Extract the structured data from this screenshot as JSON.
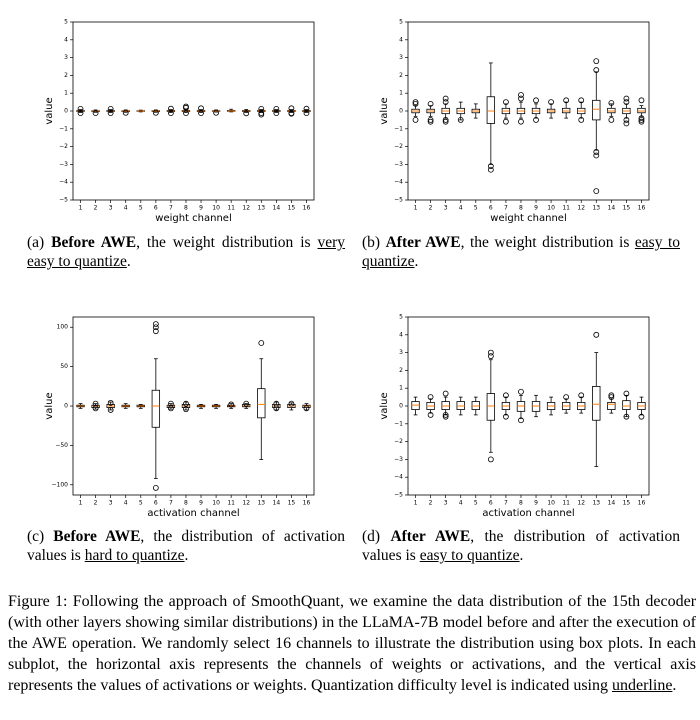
{
  "chart_data": [
    {
      "type": "box",
      "xlabel": "weight channel",
      "ylabel": "value",
      "color": "#000000",
      "median_color": "#ff7f0e",
      "categories": [
        "1",
        "2",
        "3",
        "4",
        "5",
        "6",
        "7",
        "8",
        "9",
        "10",
        "11",
        "12",
        "13",
        "14",
        "15",
        "16"
      ],
      "ylim": [
        -5,
        5
      ],
      "yticks": [
        {
          "value": -5,
          "label": "−5"
        },
        {
          "value": -4,
          "label": "−4"
        },
        {
          "value": -3,
          "label": "−3"
        },
        {
          "value": -2,
          "label": "−2"
        },
        {
          "value": -1,
          "label": "−1"
        },
        0,
        1,
        2,
        3,
        4,
        5
      ],
      "boxes": [
        {
          "q1": -0.03,
          "median": 0,
          "q3": 0.03,
          "low": -0.08,
          "high": 0.08,
          "fliers": [
            0.12,
            -0.12
          ]
        },
        {
          "q1": -0.03,
          "median": 0,
          "q3": 0.02,
          "low": -0.07,
          "high": 0.06,
          "fliers": [
            -0.12
          ]
        },
        {
          "q1": -0.03,
          "median": 0,
          "q3": 0.03,
          "low": -0.08,
          "high": 0.08,
          "fliers": [
            0.12,
            -0.12
          ]
        },
        {
          "q1": -0.03,
          "median": 0,
          "q3": 0.02,
          "low": -0.07,
          "high": 0.06,
          "fliers": [
            -0.1
          ]
        },
        {
          "q1": -0.02,
          "median": 0,
          "q3": 0.02,
          "low": -0.05,
          "high": 0.05,
          "fliers": []
        },
        {
          "q1": -0.03,
          "median": 0,
          "q3": 0.02,
          "low": -0.07,
          "high": 0.06,
          "fliers": [
            -0.1
          ]
        },
        {
          "q1": -0.03,
          "median": 0,
          "q3": 0.03,
          "low": -0.08,
          "high": 0.08,
          "fliers": [
            0.13,
            -0.12
          ]
        },
        {
          "q1": -0.03,
          "median": 0,
          "q3": 0.03,
          "low": -0.08,
          "high": 0.08,
          "fliers": [
            0.18,
            0.25,
            -0.12
          ]
        },
        {
          "q1": -0.03,
          "median": 0,
          "q3": 0.03,
          "low": -0.08,
          "high": 0.08,
          "fliers": [
            0.15,
            -0.12
          ]
        },
        {
          "q1": -0.02,
          "median": 0,
          "q3": 0.02,
          "low": -0.06,
          "high": 0.06,
          "fliers": [
            -0.1
          ]
        },
        {
          "q1": -0.02,
          "median": 0,
          "q3": 0.03,
          "low": -0.05,
          "high": 0.1,
          "fliers": []
        },
        {
          "q1": -0.03,
          "median": 0,
          "q3": 0.03,
          "low": -0.08,
          "high": 0.08,
          "fliers": [
            -0.13
          ]
        },
        {
          "q1": -0.03,
          "median": 0,
          "q3": 0.03,
          "low": -0.08,
          "high": 0.08,
          "fliers": [
            0.12,
            -0.12,
            -0.2
          ]
        },
        {
          "q1": -0.03,
          "median": 0,
          "q3": 0.03,
          "low": -0.08,
          "high": 0.08,
          "fliers": [
            0.12,
            -0.12
          ]
        },
        {
          "q1": -0.03,
          "median": 0,
          "q3": 0.03,
          "low": -0.08,
          "high": 0.08,
          "fliers": [
            0.15,
            -0.12,
            -0.15
          ]
        },
        {
          "q1": -0.03,
          "median": 0,
          "q3": 0.03,
          "low": -0.08,
          "high": 0.08,
          "fliers": [
            0.13,
            -0.12
          ]
        }
      ]
    },
    {
      "type": "box",
      "xlabel": "weight channel",
      "ylabel": "value",
      "color": "#000000",
      "median_color": "#ff7f0e",
      "categories": [
        "1",
        "2",
        "3",
        "4",
        "5",
        "6",
        "7",
        "8",
        "9",
        "10",
        "11",
        "12",
        "13",
        "14",
        "15",
        "16"
      ],
      "ylim": [
        -5,
        5
      ],
      "yticks": [
        {
          "value": -5,
          "label": "−5"
        },
        {
          "value": -4,
          "label": "−4"
        },
        {
          "value": -3,
          "label": "−3"
        },
        {
          "value": -2,
          "label": "−2"
        },
        {
          "value": -1,
          "label": "−1"
        },
        0,
        1,
        2,
        3,
        4,
        5
      ],
      "boxes": [
        {
          "q1": -0.1,
          "median": 0,
          "q3": 0.1,
          "low": -0.3,
          "high": 0.3,
          "fliers": [
            0.4,
            0.5,
            -0.5
          ]
        },
        {
          "q1": -0.1,
          "median": 0,
          "q3": 0.1,
          "low": -0.3,
          "high": 0.3,
          "fliers": [
            0.4,
            -0.5,
            -0.6
          ]
        },
        {
          "q1": -0.15,
          "median": 0,
          "q3": 0.15,
          "low": -0.4,
          "high": 0.4,
          "fliers": [
            0.5,
            0.7,
            -0.5,
            -0.6
          ]
        },
        {
          "q1": -0.15,
          "median": 0,
          "q3": 0.15,
          "low": -0.5,
          "high": 0.5,
          "fliers": [
            -0.5
          ]
        },
        {
          "q1": -0.1,
          "median": 0,
          "q3": 0.1,
          "low": -0.4,
          "high": 0.4,
          "fliers": []
        },
        {
          "q1": -0.7,
          "median": 0,
          "q3": 0.8,
          "low": -3,
          "high": 2.7,
          "fliers": [
            -3.1,
            -3.3
          ]
        },
        {
          "q1": -0.15,
          "median": 0,
          "q3": 0.15,
          "low": -0.4,
          "high": 0.4,
          "fliers": [
            0.5,
            -0.6
          ]
        },
        {
          "q1": -0.15,
          "median": 0,
          "q3": 0.15,
          "low": -0.4,
          "high": 0.5,
          "fliers": [
            0.7,
            0.9,
            -0.6
          ]
        },
        {
          "q1": -0.15,
          "median": 0,
          "q3": 0.15,
          "low": -0.4,
          "high": 0.4,
          "fliers": [
            0.6,
            -0.5
          ]
        },
        {
          "q1": -0.1,
          "median": 0,
          "q3": 0.1,
          "low": -0.4,
          "high": 0.4,
          "fliers": [
            0.5
          ]
        },
        {
          "q1": -0.1,
          "median": 0,
          "q3": 0.15,
          "low": -0.4,
          "high": 0.5,
          "fliers": [
            0.6
          ]
        },
        {
          "q1": -0.15,
          "median": 0,
          "q3": 0.15,
          "low": -0.4,
          "high": 0.5,
          "fliers": [
            0.6,
            -0.5
          ]
        },
        {
          "q1": -0.5,
          "median": 0.1,
          "q3": 0.6,
          "low": -2.2,
          "high": 2.2,
          "fliers": [
            2.3,
            2.8,
            -2.3,
            -2.5,
            -4.5
          ]
        },
        {
          "q1": -0.1,
          "median": 0,
          "q3": 0.15,
          "low": -0.3,
          "high": 0.4,
          "fliers": [
            0.45,
            -0.5
          ]
        },
        {
          "q1": -0.15,
          "median": 0,
          "q3": 0.15,
          "low": -0.4,
          "high": 0.4,
          "fliers": [
            0.5,
            0.7,
            -0.5,
            -0.7
          ]
        },
        {
          "q1": -0.1,
          "median": 0,
          "q3": 0.15,
          "low": -0.3,
          "high": 0.3,
          "fliers": [
            0.6,
            -0.4,
            -0.5,
            -0.6
          ]
        }
      ]
    },
    {
      "type": "box",
      "xlabel": "activation channel",
      "ylabel": "value",
      "color": "#000000",
      "median_color": "#ff7f0e",
      "categories": [
        "1",
        "2",
        "3",
        "4",
        "5",
        "6",
        "7",
        "8",
        "9",
        "10",
        "11",
        "12",
        "13",
        "14",
        "15",
        "16"
      ],
      "ylim": [
        -113,
        113
      ],
      "yticks": [
        {
          "value": -100,
          "label": "−100"
        },
        {
          "value": -50,
          "label": "−50"
        },
        0,
        50,
        100
      ],
      "boxes": [
        {
          "q1": -1,
          "median": 0,
          "q3": 1,
          "low": -3,
          "high": 3,
          "fliers": []
        },
        {
          "q1": -2,
          "median": 0,
          "q3": 1,
          "low": -4,
          "high": 3,
          "fliers": [
            3,
            -3
          ]
        },
        {
          "q1": -2,
          "median": 0,
          "q3": 2,
          "low": -5,
          "high": 5,
          "fliers": [
            4,
            -5
          ]
        },
        {
          "q1": -1,
          "median": 0,
          "q3": 1,
          "low": -3,
          "high": 3,
          "fliers": []
        },
        {
          "q1": -1,
          "median": 0,
          "q3": 1,
          "low": -3,
          "high": 2,
          "fliers": []
        },
        {
          "q1": -27,
          "median": 0,
          "q3": 20,
          "low": -92,
          "high": 60,
          "fliers": [
            95,
            100,
            104,
            -104
          ]
        },
        {
          "q1": -2,
          "median": 0,
          "q3": 1,
          "low": -4,
          "high": 3,
          "fliers": [
            3,
            -3
          ]
        },
        {
          "q1": -2,
          "median": 0,
          "q3": 2,
          "low": -5,
          "high": 5,
          "fliers": [
            3,
            -4
          ]
        },
        {
          "q1": -1,
          "median": 0,
          "q3": 1,
          "low": -3,
          "high": 2,
          "fliers": []
        },
        {
          "q1": -1,
          "median": 0,
          "q3": 1,
          "low": -3,
          "high": 2,
          "fliers": []
        },
        {
          "q1": -1,
          "median": 0,
          "q3": 1,
          "low": -3,
          "high": 3,
          "fliers": [
            2
          ]
        },
        {
          "q1": -1,
          "median": 0,
          "q3": 2,
          "low": -3,
          "high": 3,
          "fliers": [
            3
          ]
        },
        {
          "q1": -15,
          "median": 2,
          "q3": 22,
          "low": -68,
          "high": 60,
          "fliers": [
            80
          ]
        },
        {
          "q1": -2,
          "median": 0,
          "q3": 2,
          "low": -5,
          "high": 5,
          "fliers": [
            3,
            -3
          ]
        },
        {
          "q1": -2,
          "median": 0,
          "q3": 2,
          "low": -5,
          "high": 4,
          "fliers": [
            3
          ]
        },
        {
          "q1": -2,
          "median": 0,
          "q3": 1,
          "low": -5,
          "high": 3,
          "fliers": [
            -3
          ]
        }
      ]
    },
    {
      "type": "box",
      "xlabel": "activation channel",
      "ylabel": "value",
      "color": "#000000",
      "median_color": "#ff7f0e",
      "categories": [
        "1",
        "2",
        "3",
        "4",
        "5",
        "6",
        "7",
        "8",
        "9",
        "10",
        "11",
        "12",
        "13",
        "14",
        "15",
        "16"
      ],
      "ylim": [
        -5,
        5
      ],
      "yticks": [
        {
          "value": -5,
          "label": "−5"
        },
        {
          "value": -4,
          "label": "−4"
        },
        {
          "value": -3,
          "label": "−3"
        },
        {
          "value": -2,
          "label": "−2"
        },
        {
          "value": -1,
          "label": "−1"
        },
        0,
        1,
        2,
        3,
        4,
        5
      ],
      "boxes": [
        {
          "q1": -0.2,
          "median": 0.05,
          "q3": 0.25,
          "low": -0.5,
          "high": 0.5,
          "fliers": []
        },
        {
          "q1": -0.2,
          "median": 0,
          "q3": 0.2,
          "low": -0.4,
          "high": 0.4,
          "fliers": [
            0.5,
            -0.5
          ]
        },
        {
          "q1": -0.2,
          "median": 0,
          "q3": 0.25,
          "low": -0.5,
          "high": 0.5,
          "fliers": [
            0.7,
            -0.5,
            -0.6
          ]
        },
        {
          "q1": -0.2,
          "median": 0,
          "q3": 0.25,
          "low": -0.5,
          "high": 0.5,
          "fliers": []
        },
        {
          "q1": -0.2,
          "median": 0,
          "q3": 0.25,
          "low": -0.5,
          "high": 0.5,
          "fliers": []
        },
        {
          "q1": -0.8,
          "median": 0,
          "q3": 0.7,
          "low": -2.6,
          "high": 2.6,
          "fliers": [
            2.8,
            3,
            -3
          ]
        },
        {
          "q1": -0.2,
          "median": 0,
          "q3": 0.2,
          "low": -0.5,
          "high": 0.5,
          "fliers": [
            0.6,
            -0.6
          ]
        },
        {
          "q1": -0.3,
          "median": 0,
          "q3": 0.25,
          "low": -0.7,
          "high": 0.6,
          "fliers": [
            0.8,
            -0.8
          ]
        },
        {
          "q1": -0.3,
          "median": 0,
          "q3": 0.25,
          "low": -0.6,
          "high": 0.6,
          "fliers": []
        },
        {
          "q1": -0.2,
          "median": 0,
          "q3": 0.2,
          "low": -0.5,
          "high": 0.5,
          "fliers": []
        },
        {
          "q1": -0.2,
          "median": 0,
          "q3": 0.2,
          "low": -0.4,
          "high": 0.4,
          "fliers": [
            0.5
          ]
        },
        {
          "q1": -0.2,
          "median": 0,
          "q3": 0.2,
          "low": -0.4,
          "high": 0.5,
          "fliers": [
            0.6
          ]
        },
        {
          "q1": -0.8,
          "median": 0.1,
          "q3": 1.1,
          "low": -3.4,
          "high": 3,
          "fliers": [
            4
          ]
        },
        {
          "q1": -0.2,
          "median": 0.1,
          "q3": 0.2,
          "low": -0.4,
          "high": 0.4,
          "fliers": [
            0.5,
            0.6
          ]
        },
        {
          "q1": -0.2,
          "median": 0,
          "q3": 0.3,
          "low": -0.6,
          "high": 0.6,
          "fliers": [
            0.7,
            -0.6
          ]
        },
        {
          "q1": -0.2,
          "median": 0,
          "q3": 0.2,
          "low": -0.5,
          "high": 0.5,
          "fliers": [
            -0.6
          ]
        }
      ]
    }
  ],
  "captions": [
    {
      "label": "(a)",
      "bold": "Before AWE",
      "text": ", the weight distribution is",
      "underlined": "very easy to quantize",
      "end": "."
    },
    {
      "label": "(b)",
      "bold": "After AWE",
      "text": ", the weight distribution is",
      "underlined": "easy to quantize",
      "end": "."
    },
    {
      "label": "(c)",
      "bold": "Before AWE",
      "text": ", the distribution of activation values is",
      "underlined": "hard to quantize",
      "end": "."
    },
    {
      "label": "(d)",
      "bold": "After AWE",
      "text": ", the distribution of activation values is",
      "underlined": "easy to quantize",
      "end": "."
    }
  ],
  "figure_caption": {
    "label": "Figure 1:",
    "text": "Following the approach of SmoothQuant, we examine the data distribution of the 15th decoder (with other layers showing similar distributions) in the LLaMA-7B model before and after the execution of the AWE operation. We randomly select 16 channels to illustrate the distribution using box plots. In each subplot, the horizontal axis represents the channels of weights or activations, and the vertical axis represents the values of activations or weights. Quantization difficulty level is indicated using",
    "underlined": "underline",
    "end": "."
  }
}
